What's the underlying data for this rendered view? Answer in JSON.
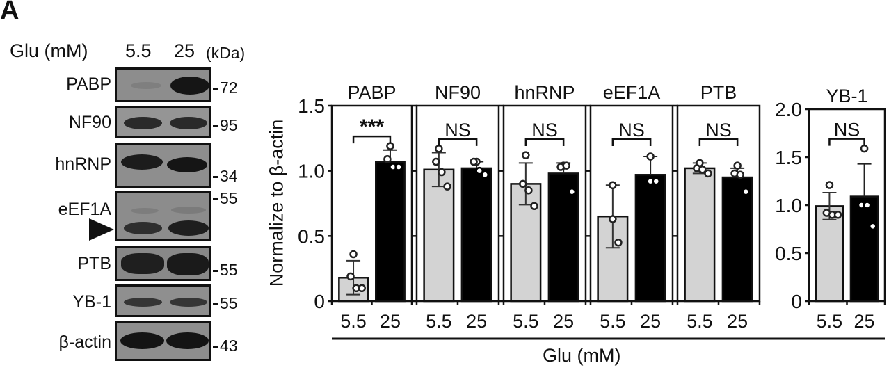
{
  "figure": {
    "panel_letter": "A",
    "blot": {
      "header_label": "Glu (mM)",
      "lanes": [
        "5.5",
        "25"
      ],
      "unit_label": "(kDa)",
      "rows": [
        {
          "protein": "PABP",
          "marker": "72"
        },
        {
          "protein": "NF90",
          "marker": "95"
        },
        {
          "protein": "hnRNP",
          "marker": "34"
        },
        {
          "protein": "eEF1A",
          "marker": "55"
        },
        {
          "protein": "PTB",
          "marker": "55"
        },
        {
          "protein": "YB-1",
          "marker": "55"
        },
        {
          "protein": "β-actin",
          "marker": "43"
        }
      ]
    },
    "x_group_label": "Glu (mM)"
  },
  "chart_data": {
    "type": "bar",
    "ylabel": "Normalize to β-actin",
    "xlabel": "Glu (mM)",
    "categories": [
      "5.5",
      "25"
    ],
    "colors": {
      "5.5": "#d3d3d3",
      "25": "#000000"
    },
    "panels": [
      {
        "title": "PABP",
        "ylim": [
          0,
          1.5
        ],
        "yticks": [
          "0",
          "0.5",
          "1.0",
          "1.5"
        ],
        "significance": "***",
        "series": [
          {
            "name": "5.5",
            "mean": 0.18,
            "sd": 0.13,
            "points": [
              0.36,
              0.19,
              0.1,
              0.1
            ]
          },
          {
            "name": "25",
            "mean": 1.07,
            "sd": 0.09,
            "points": [
              1.19,
              1.09,
              1.03,
              1.03
            ]
          }
        ]
      },
      {
        "title": "NF90",
        "ylim": [
          0,
          1.5
        ],
        "significance": "NS",
        "series": [
          {
            "name": "5.5",
            "mean": 1.01,
            "sd": 0.13,
            "points": [
              1.17,
              1.07,
              0.99,
              0.88
            ]
          },
          {
            "name": "25",
            "mean": 1.02,
            "sd": 0.05,
            "points": [
              1.07,
              1.07,
              1.0,
              0.97
            ]
          }
        ]
      },
      {
        "title": "hnRNP",
        "ylim": [
          0,
          1.5
        ],
        "significance": "NS",
        "series": [
          {
            "name": "5.5",
            "mean": 0.9,
            "sd": 0.16,
            "points": [
              1.12,
              0.9,
              0.85,
              0.73
            ]
          },
          {
            "name": "25",
            "mean": 0.98,
            "sd": 0.08,
            "points": [
              1.04,
              1.03,
              1.04,
              0.84
            ]
          }
        ]
      },
      {
        "title": "eEF1A",
        "ylim": [
          0,
          1.5
        ],
        "significance": "NS",
        "series": [
          {
            "name": "5.5",
            "mean": 0.65,
            "sd": 0.24,
            "points": [
              0.89,
              0.63,
              0.45
            ]
          },
          {
            "name": "25",
            "mean": 0.97,
            "sd": 0.14,
            "points": [
              1.11,
              0.92,
              0.92
            ]
          }
        ]
      },
      {
        "title": "PTB",
        "ylim": [
          0,
          1.5
        ],
        "significance": "NS",
        "series": [
          {
            "name": "5.5",
            "mean": 1.02,
            "sd": 0.04,
            "points": [
              1.06,
              1.02,
              1.01,
              0.98
            ]
          },
          {
            "name": "25",
            "mean": 0.95,
            "sd": 0.07,
            "points": [
              1.04,
              0.98,
              0.97,
              0.84
            ]
          }
        ]
      },
      {
        "title": "YB-1",
        "ylim": [
          0,
          2.0
        ],
        "yticks": [
          "0",
          "0.5",
          "1.0",
          "1.5",
          "2.0"
        ],
        "significance": "NS",
        "series": [
          {
            "name": "5.5",
            "mean": 0.99,
            "sd": 0.14,
            "points": [
              1.21,
              0.92,
              0.9,
              0.9
            ]
          },
          {
            "name": "25",
            "mean": 1.09,
            "sd": 0.34,
            "points": [
              1.59,
              1.0,
              1.0,
              0.78
            ]
          }
        ]
      }
    ]
  }
}
